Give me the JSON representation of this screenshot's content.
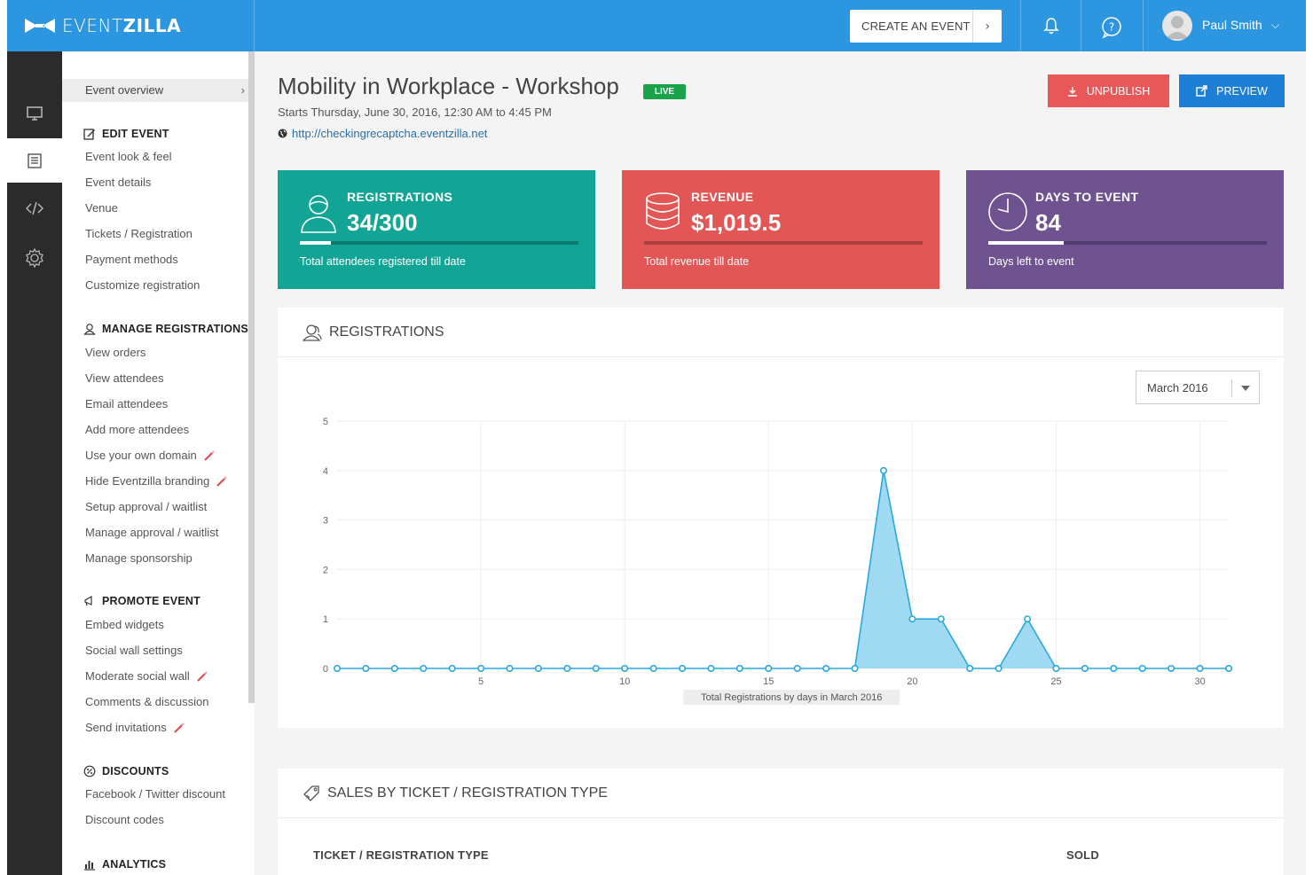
{
  "header": {
    "logo_light": "EVENT",
    "logo_bold": "ZILLA",
    "create_event_label": "CREATE AN EVENT",
    "user_name": "Paul Smith"
  },
  "sidebar": {
    "overview": "Event overview",
    "sections": [
      {
        "title": "EDIT EVENT",
        "icon": "edit-icon",
        "items": [
          "Event look & feel",
          "Event details",
          "Venue",
          "Tickets / Registration",
          "Payment methods",
          "Customize registration"
        ]
      },
      {
        "title": "MANAGE REGISTRATIONS",
        "icon": "user-icon",
        "items": [
          "View orders",
          "View attendees",
          "Email attendees",
          "Add more attendees",
          "Use your own domain",
          "Hide Eventzilla branding",
          "Setup approval / waitlist",
          "Manage approval / waitlist",
          "Manage sponsorship"
        ]
      },
      {
        "title": "PROMOTE EVENT",
        "icon": "megaphone-icon",
        "items": [
          "Embed widgets",
          "Social wall settings",
          "Moderate social wall",
          "Comments & discussion",
          "Send invitations"
        ]
      },
      {
        "title": "DISCOUNTS",
        "icon": "discount-icon",
        "items": [
          "Facebook / Twitter discount",
          "Discount codes"
        ]
      },
      {
        "title": "ANALYTICS",
        "icon": "analytics-icon",
        "items": []
      }
    ]
  },
  "event": {
    "title": "Mobility in Workplace - Workshop",
    "status": "LIVE",
    "schedule": "Starts Thursday, June 30, 2016, 12:30 AM to 4:45 PM",
    "url": "http://checkingrecaptcha.eventzilla.net",
    "unpublish_label": "UNPUBLISH",
    "preview_label": "PREVIEW"
  },
  "stats": [
    {
      "label": "REGISTRATIONS",
      "value": "34/300",
      "desc": "Total attendees registered till date",
      "color": "#12a596",
      "progress": 0.11
    },
    {
      "label": "REVENUE",
      "value": "$1,019.5",
      "desc": "Total revenue till date",
      "color": "#e25656",
      "progress": 0
    },
    {
      "label": "DAYS TO EVENT",
      "value": "84",
      "desc": "Days left to event",
      "color": "#6e5390",
      "progress": 0.27
    }
  ],
  "registrations_card": {
    "title": "REGISTRATIONS",
    "month": "March 2016"
  },
  "chart_data": {
    "type": "area",
    "title": "",
    "xlabel": "Total Registrations by days in March 2016",
    "ylabel": "",
    "x": [
      0,
      1,
      2,
      3,
      4,
      5,
      6,
      7,
      8,
      9,
      10,
      11,
      12,
      13,
      14,
      15,
      16,
      17,
      18,
      19,
      20,
      21,
      22,
      23,
      24,
      25,
      26,
      27,
      28,
      29,
      30,
      31
    ],
    "values": [
      0,
      0,
      0,
      0,
      0,
      0,
      0,
      0,
      0,
      0,
      0,
      0,
      0,
      0,
      0,
      0,
      0,
      0,
      0,
      4,
      1,
      1,
      0,
      0,
      1,
      0,
      0,
      0,
      0,
      0,
      0,
      0
    ],
    "xticks": [
      5,
      10,
      15,
      20,
      25,
      30
    ],
    "yticks": [
      0,
      1,
      2,
      3,
      4,
      5
    ],
    "xlim": [
      0,
      31
    ],
    "ylim": [
      0,
      5
    ],
    "grid": true,
    "colors": {
      "line": "#29a8e0",
      "fill": "#8fd3f0"
    }
  },
  "sales_card": {
    "title": "SALES BY TICKET / REGISTRATION TYPE",
    "col_type": "TICKET / REGISTRATION TYPE",
    "col_sold": "SOLD"
  }
}
